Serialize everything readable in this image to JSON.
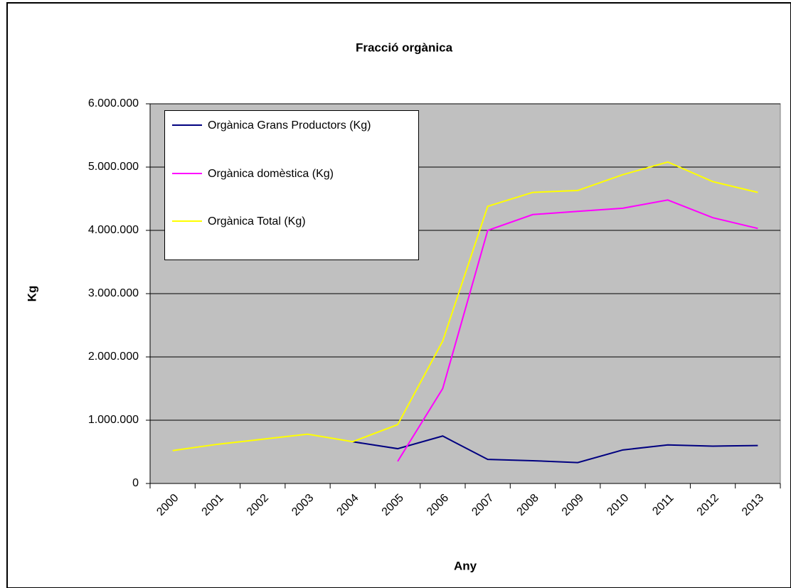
{
  "chart_data": {
    "type": "line",
    "title": "Fracció orgànica",
    "x_label": "Any",
    "y_label": "Kg",
    "categories": [
      "2000",
      "2001",
      "2002",
      "2003",
      "2004",
      "2005",
      "2006",
      "2007",
      "2008",
      "2009",
      "2010",
      "2011",
      "2012",
      "2013"
    ],
    "ylim": [
      0,
      6000000
    ],
    "yticks": [
      0,
      {
        "value": 1000000,
        "label": "1.000.000"
      },
      {
        "value": 2000000,
        "label": "2.000.000"
      },
      {
        "value": 3000000,
        "label": "3.000.000"
      },
      {
        "value": 4000000,
        "label": "4.000.000"
      },
      {
        "value": 5000000,
        "label": "5.000.000"
      },
      {
        "value": 6000000,
        "label": "6.000.000"
      }
    ],
    "grid": true,
    "series": [
      {
        "name": "Orgànica Grans Productors (Kg)",
        "color": "#000080",
        "values": [
          null,
          null,
          null,
          null,
          660000,
          550000,
          750000,
          380000,
          360000,
          330000,
          530000,
          610000,
          590000,
          600000
        ]
      },
      {
        "name": "Orgànica domèstica (Kg)",
        "color": "#ff00ff",
        "values": [
          null,
          null,
          null,
          null,
          null,
          350000,
          1500000,
          4000000,
          4250000,
          4300000,
          4350000,
          4480000,
          4200000,
          4030000
        ]
      },
      {
        "name": "Orgànica Total (Kg)",
        "color": "#ffff00",
        "values": [
          520000,
          620000,
          700000,
          780000,
          660000,
          930000,
          2250000,
          4380000,
          4600000,
          4630000,
          4880000,
          5080000,
          4770000,
          4600000
        ]
      }
    ]
  }
}
